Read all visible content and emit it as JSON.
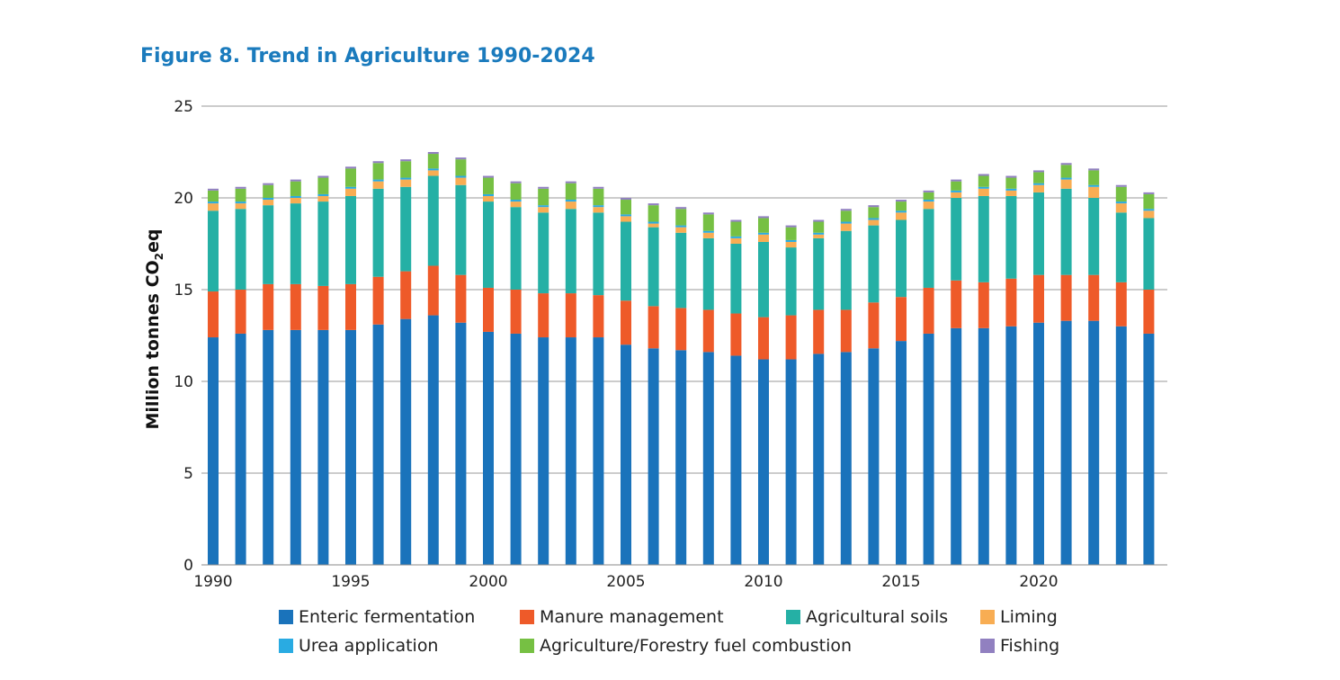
{
  "title": "Figure 8. Trend in Agriculture 1990-2024",
  "chart_data": {
    "type": "bar",
    "stacked": true,
    "title": "Figure 8. Trend in Agriculture 1990-2024",
    "xlabel": "",
    "ylabel_main": "Million tonnes CO",
    "ylabel_sub": "2",
    "ylabel_tail": "eq",
    "ylim": [
      0,
      25
    ],
    "yticks": [
      0,
      5,
      10,
      15,
      20,
      25
    ],
    "xtick_labels": [
      "1990",
      "1995",
      "2000",
      "2005",
      "2010",
      "2015",
      "2020"
    ],
    "categories": [
      "1990",
      "1991",
      "1992",
      "1993",
      "1994",
      "1995",
      "1996",
      "1997",
      "1998",
      "1999",
      "2000",
      "2001",
      "2002",
      "2003",
      "2004",
      "2005",
      "2006",
      "2007",
      "2008",
      "2009",
      "2010",
      "2011",
      "2012",
      "2013",
      "2014",
      "2015",
      "2016",
      "2017",
      "2018",
      "2019",
      "2020",
      "2021",
      "2022",
      "2023",
      "2024"
    ],
    "series": [
      {
        "name": "Enteric fermentation",
        "color": "#1a73bb",
        "values": [
          12.4,
          12.6,
          12.8,
          12.8,
          12.8,
          12.8,
          13.1,
          13.4,
          13.6,
          13.2,
          12.7,
          12.6,
          12.4,
          12.4,
          12.4,
          12.0,
          11.8,
          11.7,
          11.6,
          11.4,
          11.2,
          11.2,
          11.5,
          11.6,
          11.8,
          12.2,
          12.6,
          12.9,
          12.9,
          13.0,
          13.2,
          13.3,
          13.3,
          13.0,
          12.6
        ]
      },
      {
        "name": "Manure management",
        "color": "#ee5a29",
        "values": [
          2.5,
          2.4,
          2.5,
          2.5,
          2.4,
          2.5,
          2.6,
          2.6,
          2.7,
          2.6,
          2.4,
          2.4,
          2.4,
          2.4,
          2.3,
          2.4,
          2.3,
          2.3,
          2.3,
          2.3,
          2.3,
          2.4,
          2.4,
          2.3,
          2.5,
          2.4,
          2.5,
          2.6,
          2.5,
          2.6,
          2.6,
          2.5,
          2.5,
          2.4,
          2.4
        ]
      },
      {
        "name": "Agricultural soils",
        "color": "#25b0a5",
        "values": [
          4.4,
          4.4,
          4.3,
          4.4,
          4.6,
          4.8,
          4.8,
          4.6,
          4.9,
          4.9,
          4.7,
          4.5,
          4.4,
          4.6,
          4.5,
          4.3,
          4.3,
          4.1,
          3.9,
          3.8,
          4.1,
          3.7,
          3.9,
          4.3,
          4.2,
          4.2,
          4.3,
          4.5,
          4.7,
          4.5,
          4.5,
          4.7,
          4.2,
          3.8,
          3.9
        ]
      },
      {
        "name": "Liming",
        "color": "#f8ad53",
        "values": [
          0.4,
          0.3,
          0.3,
          0.3,
          0.3,
          0.4,
          0.4,
          0.4,
          0.3,
          0.4,
          0.3,
          0.3,
          0.3,
          0.4,
          0.3,
          0.3,
          0.2,
          0.3,
          0.3,
          0.3,
          0.4,
          0.3,
          0.2,
          0.4,
          0.3,
          0.4,
          0.4,
          0.3,
          0.4,
          0.3,
          0.4,
          0.5,
          0.6,
          0.5,
          0.4
        ]
      },
      {
        "name": "Urea application",
        "color": "#29abe2",
        "values": [
          0.1,
          0.1,
          0.1,
          0.1,
          0.1,
          0.1,
          0.1,
          0.1,
          0.1,
          0.1,
          0.1,
          0.1,
          0.1,
          0.1,
          0.1,
          0.1,
          0.1,
          0.1,
          0.1,
          0.1,
          0.1,
          0.1,
          0.1,
          0.1,
          0.1,
          0.1,
          0.1,
          0.1,
          0.1,
          0.1,
          0.1,
          0.1,
          0.1,
          0.1,
          0.1
        ]
      },
      {
        "name": "Agriculture/Forestry fuel combustion",
        "color": "#76c043",
        "values": [
          0.6,
          0.7,
          0.7,
          0.8,
          0.9,
          1.0,
          0.9,
          0.9,
          0.8,
          0.9,
          0.9,
          0.9,
          0.9,
          0.9,
          0.9,
          0.8,
          0.9,
          0.9,
          0.9,
          0.8,
          0.8,
          0.7,
          0.6,
          0.6,
          0.6,
          0.5,
          0.4,
          0.5,
          0.6,
          0.6,
          0.6,
          0.7,
          0.8,
          0.8,
          0.8
        ]
      },
      {
        "name": "Fishing",
        "color": "#9180c0",
        "values": [
          0.1,
          0.1,
          0.1,
          0.1,
          0.1,
          0.1,
          0.1,
          0.1,
          0.1,
          0.1,
          0.1,
          0.1,
          0.1,
          0.1,
          0.1,
          0.1,
          0.1,
          0.1,
          0.1,
          0.1,
          0.1,
          0.1,
          0.1,
          0.1,
          0.1,
          0.1,
          0.1,
          0.1,
          0.1,
          0.1,
          0.1,
          0.1,
          0.1,
          0.1,
          0.1
        ]
      }
    ],
    "legend": "bottom"
  }
}
